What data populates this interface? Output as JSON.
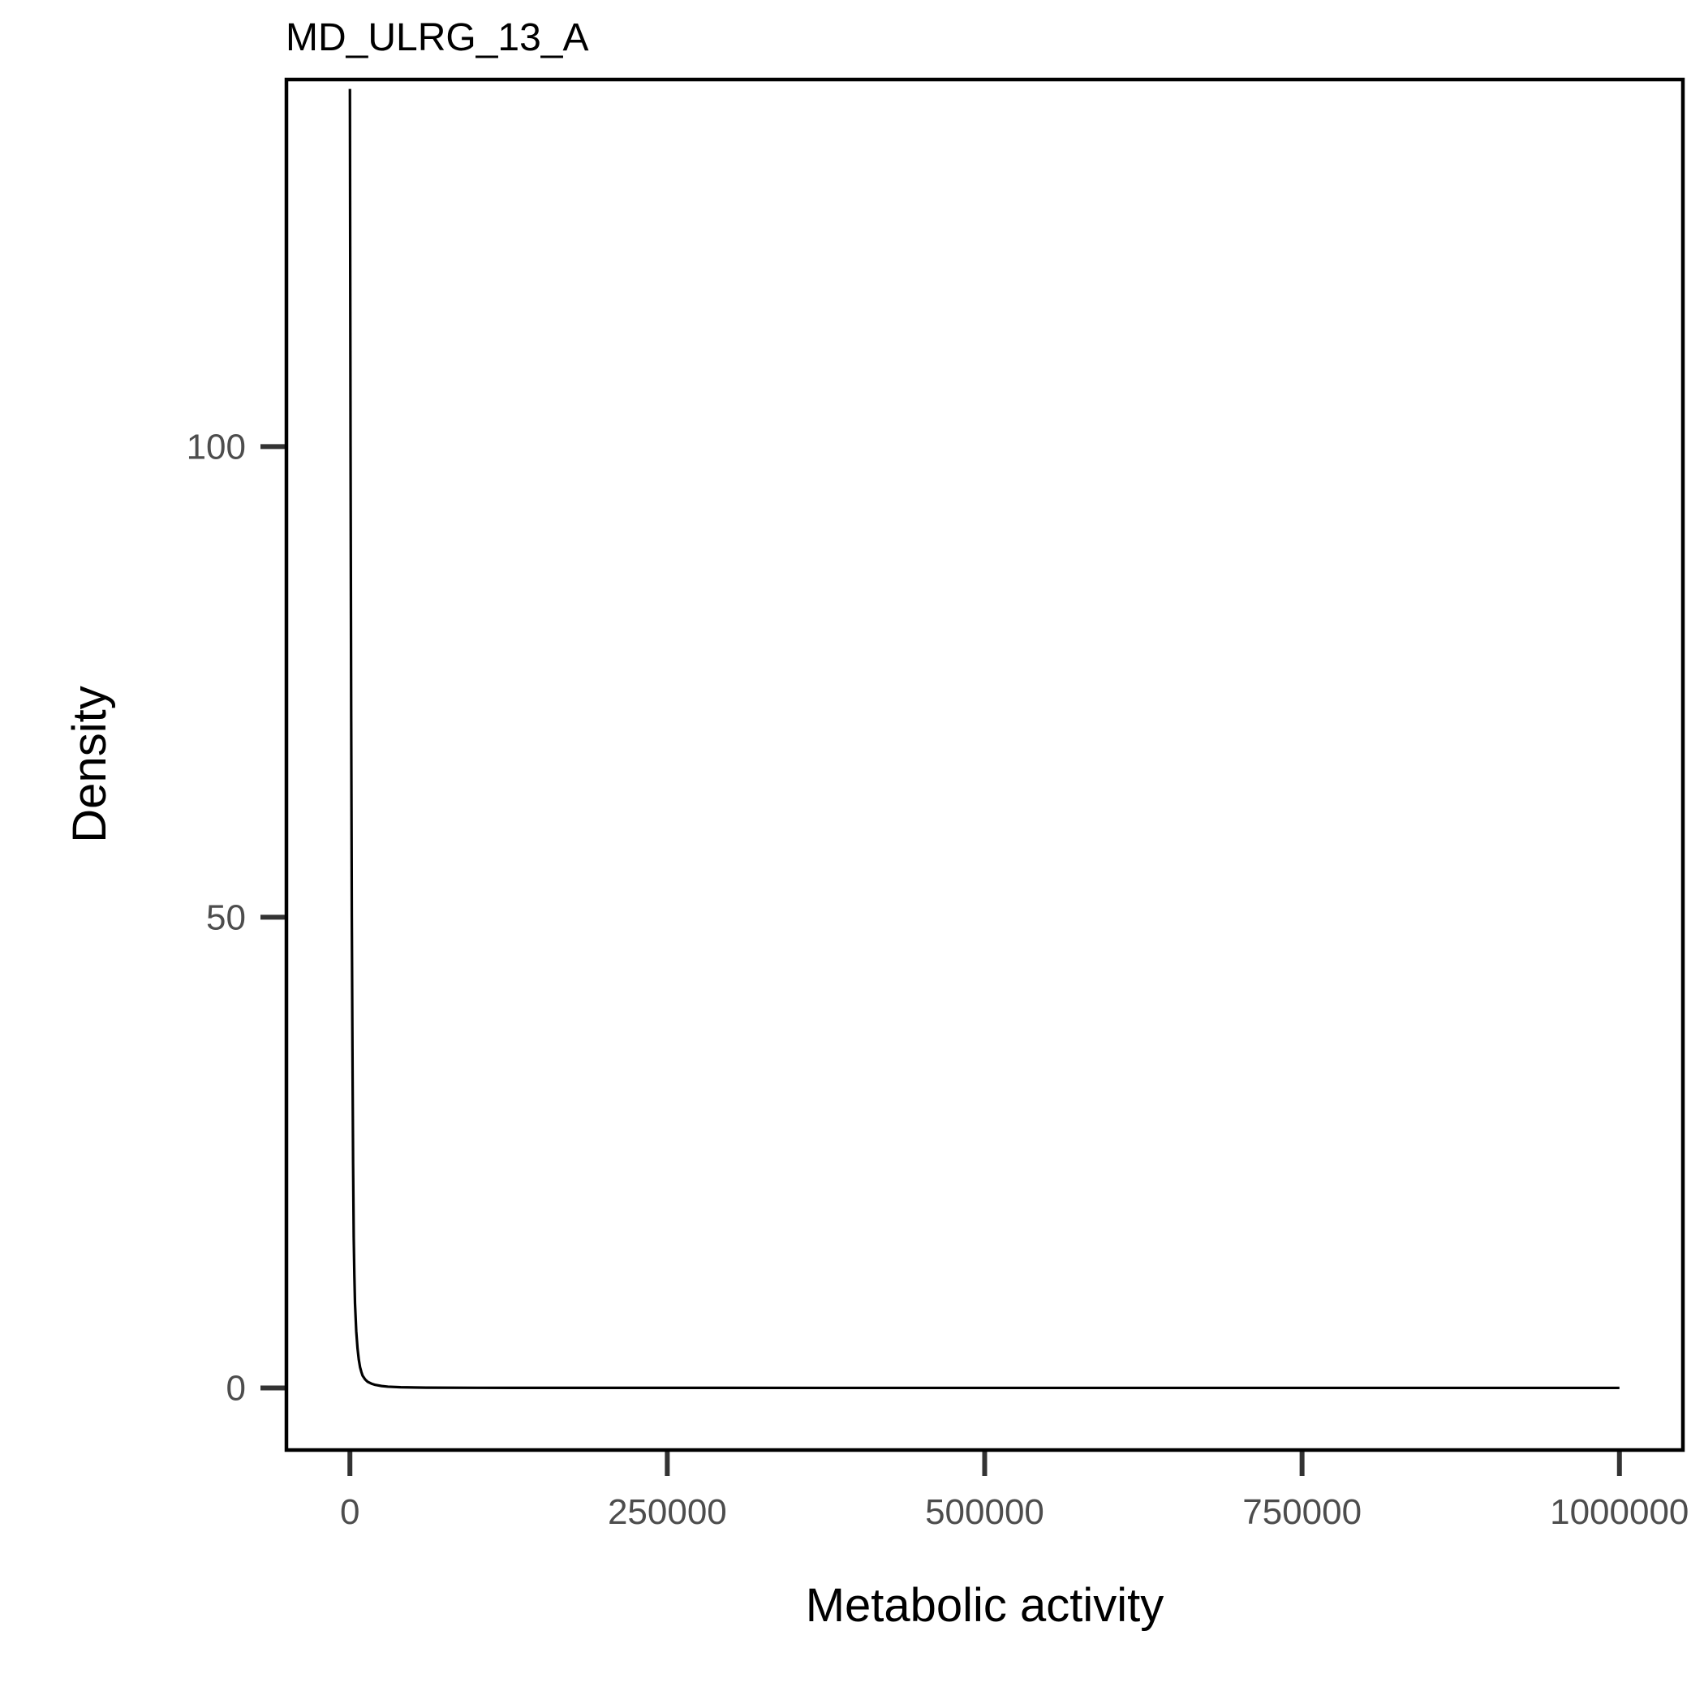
{
  "chart_data": {
    "type": "line",
    "title": "MD_ULRG_13_A",
    "xlabel": "Metabolic activity",
    "ylabel": "Density",
    "xlim": [
      -50000,
      1050000
    ],
    "ylim": [
      -6.6,
      139
    ],
    "x_ticks": [
      0,
      250000,
      500000,
      750000,
      1000000
    ],
    "x_tick_labels": [
      "0",
      "250000",
      "500000",
      "750000",
      "1000000"
    ],
    "y_ticks": [
      0,
      50,
      100
    ],
    "y_tick_labels": [
      "0",
      "50",
      "100"
    ],
    "grid": false,
    "legend": "none",
    "line_color": "#000000",
    "series": [
      {
        "x": [
          0,
          500,
          1000,
          1500,
          2000,
          2500,
          3000,
          3500,
          4000,
          5000,
          6000,
          7000,
          8000,
          9000,
          10000,
          12000,
          14000,
          17000,
          20000,
          25000,
          30000,
          40000,
          60000,
          100000,
          200000,
          400000,
          600000,
          800000,
          1000000
        ],
        "values": [
          138,
          100,
          72,
          50,
          36,
          24,
          16,
          12,
          9,
          6,
          4.2,
          3,
          2.2,
          1.7,
          1.3,
          0.9,
          0.65,
          0.45,
          0.32,
          0.2,
          0.13,
          0.07,
          0.03,
          0.01,
          0.004,
          0.001,
          0.0005,
          0.0002,
          0.0001
        ]
      }
    ]
  }
}
